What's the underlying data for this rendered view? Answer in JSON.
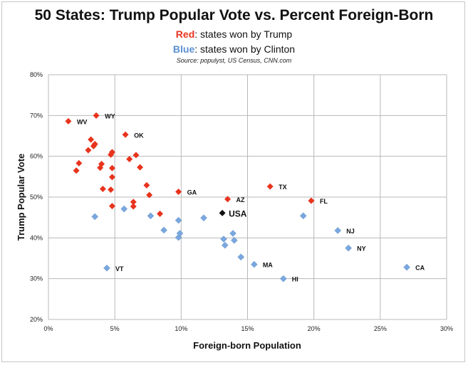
{
  "title": "50 States: Trump Popular Vote vs. Percent Foreign-Born",
  "subtitle_red_word": "Red",
  "subtitle_red_rest": ": states won by Trump",
  "subtitle_blue_word": "Blue",
  "subtitle_blue_rest": ": states won by Clinton",
  "source": "Source: populyst, US Census, CNN.com",
  "colors": {
    "trump": "#e8331d",
    "clinton": "#7aa7de",
    "usa": "#111111",
    "grid": "#b8b8b8"
  },
  "chart_data": {
    "type": "scatter",
    "xlabel": "Foreign-born Population",
    "ylabel": "Trump Popular Vote",
    "xlim": [
      0,
      30
    ],
    "ylim": [
      20,
      80
    ],
    "x_ticks": [
      0,
      5,
      10,
      15,
      20,
      25,
      30
    ],
    "y_ticks": [
      20,
      30,
      40,
      50,
      60,
      70,
      80
    ],
    "x_tick_labels": [
      "0%",
      "5%",
      "10%",
      "15%",
      "20%",
      "25%",
      "30%"
    ],
    "y_tick_labels": [
      "20%",
      "30%",
      "40%",
      "50%",
      "60%",
      "70%",
      "80%"
    ],
    "grid": true,
    "series": [
      {
        "name": "Red",
        "points": [
          {
            "x": 1.5,
            "y": 68.6,
            "label": "WV"
          },
          {
            "x": 3.6,
            "y": 70.0,
            "label": "WY"
          },
          {
            "x": 5.8,
            "y": 65.3,
            "label": "OK"
          },
          {
            "x": 9.8,
            "y": 51.3,
            "label": "GA"
          },
          {
            "x": 13.5,
            "y": 49.5,
            "label": "AZ"
          },
          {
            "x": 16.7,
            "y": 52.6,
            "label": "TX"
          },
          {
            "x": 19.8,
            "y": 49.1,
            "label": "FL"
          },
          {
            "x": 2.1,
            "y": 56.5
          },
          {
            "x": 2.3,
            "y": 58.3
          },
          {
            "x": 3.0,
            "y": 61.5
          },
          {
            "x": 3.2,
            "y": 64.1
          },
          {
            "x": 3.4,
            "y": 62.5
          },
          {
            "x": 3.5,
            "y": 63.0
          },
          {
            "x": 3.9,
            "y": 57.2
          },
          {
            "x": 4.0,
            "y": 58.1
          },
          {
            "x": 4.1,
            "y": 52.0
          },
          {
            "x": 4.7,
            "y": 51.8
          },
          {
            "x": 4.7,
            "y": 60.4
          },
          {
            "x": 4.8,
            "y": 61.0
          },
          {
            "x": 4.8,
            "y": 57.1
          },
          {
            "x": 4.8,
            "y": 54.9
          },
          {
            "x": 4.8,
            "y": 47.8
          },
          {
            "x": 6.1,
            "y": 59.3
          },
          {
            "x": 6.4,
            "y": 48.8
          },
          {
            "x": 6.4,
            "y": 47.7
          },
          {
            "x": 6.6,
            "y": 60.3
          },
          {
            "x": 6.9,
            "y": 57.3
          },
          {
            "x": 7.4,
            "y": 52.9
          },
          {
            "x": 7.6,
            "y": 50.5
          },
          {
            "x": 8.4,
            "y": 45.9
          }
        ]
      },
      {
        "name": "Blue",
        "points": [
          {
            "x": 4.4,
            "y": 32.6,
            "label": "VT"
          },
          {
            "x": 15.5,
            "y": 33.5,
            "label": "MA"
          },
          {
            "x": 17.7,
            "y": 30.0,
            "label": "HI"
          },
          {
            "x": 21.8,
            "y": 41.8,
            "label": "NJ"
          },
          {
            "x": 22.6,
            "y": 37.5,
            "label": "NY"
          },
          {
            "x": 27.0,
            "y": 32.8,
            "label": "CA"
          },
          {
            "x": 3.5,
            "y": 45.2
          },
          {
            "x": 5.7,
            "y": 47.1
          },
          {
            "x": 7.7,
            "y": 45.4
          },
          {
            "x": 8.7,
            "y": 41.9
          },
          {
            "x": 9.8,
            "y": 44.3
          },
          {
            "x": 9.8,
            "y": 40.1
          },
          {
            "x": 9.9,
            "y": 41.1
          },
          {
            "x": 11.7,
            "y": 44.9
          },
          {
            "x": 13.2,
            "y": 39.7
          },
          {
            "x": 13.3,
            "y": 38.2
          },
          {
            "x": 13.9,
            "y": 41.1
          },
          {
            "x": 14.0,
            "y": 39.4
          },
          {
            "x": 14.5,
            "y": 35.3
          },
          {
            "x": 19.2,
            "y": 45.4
          }
        ]
      },
      {
        "name": "USA",
        "points": [
          {
            "x": 13.1,
            "y": 46.1,
            "label": "USA"
          }
        ]
      }
    ]
  }
}
